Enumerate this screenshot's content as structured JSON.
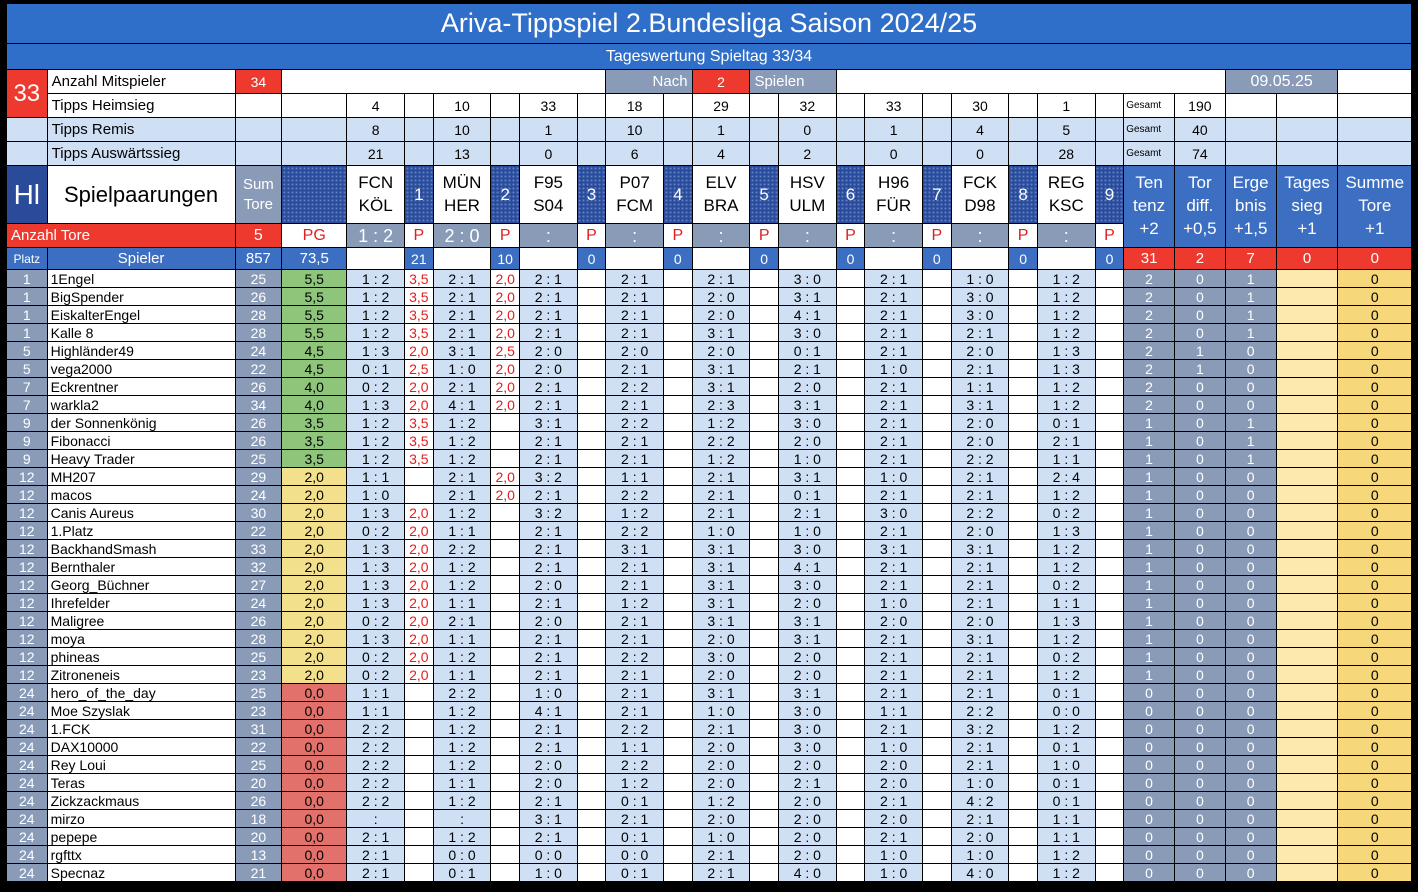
{
  "title": "Ariva-Tippspiel 2.Bundesliga Saison 2024/25",
  "subtitle": "Tageswertung Spieltag 33/34",
  "matchday": "33",
  "info": {
    "mitspieler_label": "Anzahl Mitspieler",
    "mitspieler_value": "34",
    "nach_label": "Nach",
    "nach_value": "2",
    "spielen_label": "Spielen",
    "date": "09.05.25",
    "heimsieg_label": "Tipps Heimsieg",
    "remis_label": "Tipps Remis",
    "auswaerts_label": "Tipps Auswärtssieg",
    "gesamt_label": "Gesamt",
    "gesamt_heim": "190",
    "gesamt_remis": "40",
    "gesamt_ausw": "74"
  },
  "tipps_heim": [
    "4",
    "10",
    "33",
    "18",
    "29",
    "32",
    "33",
    "30",
    "1"
  ],
  "tipps_remis": [
    "8",
    "10",
    "1",
    "10",
    "1",
    "0",
    "1",
    "4",
    "5"
  ],
  "tipps_ausw": [
    "21",
    "13",
    "0",
    "6",
    "4",
    "2",
    "0",
    "0",
    "28"
  ],
  "header": {
    "hl": "Hl",
    "spielpaarungen": "Spielpaarungen",
    "sum_tore": "Sum Tore",
    "anzahl_tore_label": "Anzahl Tore",
    "anzahl_tore_value": "5",
    "pg": "PG",
    "p": "P",
    "platz": "Platz",
    "spieler": "Spieler",
    "sum_total": "857",
    "pg_total": "73,5"
  },
  "matches": [
    {
      "home": "FCN",
      "away": "KÖL",
      "no": "1",
      "result": "1 : 2",
      "pts_total": "21"
    },
    {
      "home": "MÜN",
      "away": "HER",
      "no": "2",
      "result": "2 : 0",
      "pts_total": "10"
    },
    {
      "home": "F95",
      "away": "S04",
      "no": "3",
      "result": ":",
      "pts_total": "0"
    },
    {
      "home": "P07",
      "away": "FCM",
      "no": "4",
      "result": ":",
      "pts_total": "0"
    },
    {
      "home": "ELV",
      "away": "BRA",
      "no": "5",
      "result": ":",
      "pts_total": "0"
    },
    {
      "home": "HSV",
      "away": "ULM",
      "no": "6",
      "result": ":",
      "pts_total": "0"
    },
    {
      "home": "H96",
      "away": "FÜR",
      "no": "7",
      "result": ":",
      "pts_total": "0"
    },
    {
      "home": "FCK",
      "away": "D98",
      "no": "8",
      "result": ":",
      "pts_total": "0"
    },
    {
      "home": "REG",
      "away": "KSC",
      "no": "9",
      "result": ":",
      "pts_total": "0"
    }
  ],
  "bonus": [
    {
      "l1": "Ten",
      "l2": "tenz",
      "l3": "+2",
      "total": "31"
    },
    {
      "l1": "Tor",
      "l2": "diff.",
      "l3": "+0,5",
      "total": "2"
    },
    {
      "l1": "Erge",
      "l2": "bnis",
      "l3": "+1,5",
      "total": "7"
    },
    {
      "l1": "Tages",
      "l2": "sieg",
      "l3": "+1",
      "total": "0"
    },
    {
      "l1": "Summe",
      "l2": "Tore",
      "l3": "+1",
      "total": "0"
    }
  ],
  "colors": {
    "title_blue": "#2f6fc9",
    "header_red": "#ee3a2e",
    "gray_blue": "#8a9bb8",
    "tip_blue": "#cfe0f5"
  },
  "players": [
    {
      "place": "1",
      "name": "1Engel",
      "sum": "25",
      "pg": "5,5",
      "pgc": "green",
      "tips": [
        "1 : 2",
        "2 : 1",
        "2 : 1",
        "2 : 1",
        "2 : 1",
        "3 : 0",
        "2 : 1",
        "1 : 0",
        "1 : 2"
      ],
      "pts": [
        "3,5",
        "2,0"
      ],
      "b": [
        "2",
        "0",
        "1"
      ],
      "tag": "",
      "st": "0"
    },
    {
      "place": "1",
      "name": "BigSpender",
      "sum": "26",
      "pg": "5,5",
      "pgc": "green",
      "tips": [
        "1 : 2",
        "2 : 1",
        "2 : 1",
        "2 : 1",
        "2 : 0",
        "3 : 1",
        "2 : 1",
        "3 : 0",
        "1 : 2"
      ],
      "pts": [
        "3,5",
        "2,0"
      ],
      "b": [
        "2",
        "0",
        "1"
      ],
      "tag": "",
      "st": "0"
    },
    {
      "place": "1",
      "name": "EiskalterEngel",
      "sum": "28",
      "pg": "5,5",
      "pgc": "green",
      "tips": [
        "1 : 2",
        "2 : 1",
        "2 : 1",
        "2 : 1",
        "2 : 0",
        "4 : 1",
        "2 : 1",
        "3 : 0",
        "1 : 2"
      ],
      "pts": [
        "3,5",
        "2,0"
      ],
      "b": [
        "2",
        "0",
        "1"
      ],
      "tag": "",
      "st": "0"
    },
    {
      "place": "1",
      "name": "Kalle 8",
      "sum": "28",
      "pg": "5,5",
      "pgc": "green",
      "tips": [
        "1 : 2",
        "2 : 1",
        "2 : 1",
        "2 : 1",
        "3 : 1",
        "3 : 0",
        "2 : 1",
        "2 : 1",
        "1 : 2"
      ],
      "pts": [
        "3,5",
        "2,0"
      ],
      "b": [
        "2",
        "0",
        "1"
      ],
      "tag": "",
      "st": "0"
    },
    {
      "place": "5",
      "name": "Highländer49",
      "sum": "24",
      "pg": "4,5",
      "pgc": "green",
      "tips": [
        "1 : 3",
        "3 : 1",
        "2 : 0",
        "2 : 0",
        "2 : 0",
        "0 : 1",
        "2 : 1",
        "2 : 0",
        "1 : 3"
      ],
      "pts": [
        "2,0",
        "2,5"
      ],
      "b": [
        "2",
        "1",
        "0"
      ],
      "tag": "",
      "st": "0"
    },
    {
      "place": "5",
      "name": "vega2000",
      "sum": "22",
      "pg": "4,5",
      "pgc": "green",
      "tips": [
        "0 : 1",
        "1 : 0",
        "2 : 0",
        "2 : 1",
        "3 : 1",
        "2 : 1",
        "1 : 0",
        "2 : 1",
        "1 : 3"
      ],
      "pts": [
        "2,5",
        "2,0"
      ],
      "b": [
        "2",
        "1",
        "0"
      ],
      "tag": "",
      "st": "0"
    },
    {
      "place": "7",
      "name": "Eckrentner",
      "sum": "26",
      "pg": "4,0",
      "pgc": "green",
      "tips": [
        "0 : 2",
        "2 : 1",
        "2 : 1",
        "2 : 2",
        "3 : 1",
        "2 : 0",
        "2 : 1",
        "1 : 1",
        "1 : 2"
      ],
      "pts": [
        "2,0",
        "2,0"
      ],
      "b": [
        "2",
        "0",
        "0"
      ],
      "tag": "",
      "st": "0"
    },
    {
      "place": "7",
      "name": "warkla2",
      "sum": "34",
      "pg": "4,0",
      "pgc": "green",
      "tips": [
        "1 : 3",
        "4 : 1",
        "2 : 1",
        "2 : 1",
        "2 : 3",
        "3 : 1",
        "2 : 1",
        "3 : 1",
        "1 : 2"
      ],
      "pts": [
        "2,0",
        "2,0"
      ],
      "b": [
        "2",
        "0",
        "0"
      ],
      "tag": "",
      "st": "0"
    },
    {
      "place": "9",
      "name": "der Sonnenkönig",
      "sum": "26",
      "pg": "3,5",
      "pgc": "green",
      "tips": [
        "1 : 2",
        "1 : 2",
        "3 : 1",
        "2 : 2",
        "1 : 2",
        "3 : 0",
        "2 : 1",
        "2 : 0",
        "0 : 1"
      ],
      "pts": [
        "3,5",
        ""
      ],
      "b": [
        "1",
        "0",
        "1"
      ],
      "tag": "",
      "st": "0"
    },
    {
      "place": "9",
      "name": "Fibonacci",
      "sum": "26",
      "pg": "3,5",
      "pgc": "green",
      "tips": [
        "1 : 2",
        "1 : 2",
        "2 : 1",
        "2 : 1",
        "2 : 2",
        "2 : 0",
        "2 : 1",
        "2 : 0",
        "2 : 1"
      ],
      "pts": [
        "3,5",
        ""
      ],
      "b": [
        "1",
        "0",
        "1"
      ],
      "tag": "",
      "st": "0"
    },
    {
      "place": "9",
      "name": "Heavy Trader",
      "sum": "25",
      "pg": "3,5",
      "pgc": "green",
      "tips": [
        "1 : 2",
        "1 : 2",
        "2 : 1",
        "2 : 1",
        "1 : 2",
        "1 : 0",
        "2 : 1",
        "2 : 2",
        "1 : 1"
      ],
      "pts": [
        "3,5",
        ""
      ],
      "b": [
        "1",
        "0",
        "1"
      ],
      "tag": "",
      "st": "0"
    },
    {
      "place": "12",
      "name": "MH207",
      "sum": "29",
      "pg": "2,0",
      "pgc": "yellow",
      "tips": [
        "1 : 1",
        "2 : 1",
        "3 : 2",
        "1 : 1",
        "2 : 1",
        "3 : 1",
        "1 : 0",
        "2 : 1",
        "2 : 4"
      ],
      "pts": [
        "",
        "2,0"
      ],
      "b": [
        "1",
        "0",
        "0"
      ],
      "tag": "",
      "st": "0"
    },
    {
      "place": "12",
      "name": "macos",
      "sum": "24",
      "pg": "2,0",
      "pgc": "yellow",
      "tips": [
        "1 : 0",
        "2 : 1",
        "2 : 1",
        "2 : 2",
        "2 : 1",
        "0 : 1",
        "2 : 1",
        "2 : 1",
        "1 : 2"
      ],
      "pts": [
        "",
        "2,0"
      ],
      "b": [
        "1",
        "0",
        "0"
      ],
      "tag": "",
      "st": "0"
    },
    {
      "place": "12",
      "name": "Canis Aureus",
      "sum": "30",
      "pg": "2,0",
      "pgc": "yellow",
      "tips": [
        "1 : 3",
        "1 : 2",
        "3 : 2",
        "1 : 2",
        "2 : 1",
        "2 : 1",
        "3 : 0",
        "2 : 2",
        "0 : 2"
      ],
      "pts": [
        "2,0",
        ""
      ],
      "b": [
        "1",
        "0",
        "0"
      ],
      "tag": "",
      "st": "0"
    },
    {
      "place": "12",
      "name": "1.Platz",
      "sum": "22",
      "pg": "2,0",
      "pgc": "yellow",
      "tips": [
        "0 : 2",
        "1 : 1",
        "2 : 1",
        "2 : 2",
        "1 : 0",
        "1 : 0",
        "2 : 1",
        "2 : 0",
        "1 : 3"
      ],
      "pts": [
        "2,0",
        ""
      ],
      "b": [
        "1",
        "0",
        "0"
      ],
      "tag": "",
      "st": "0"
    },
    {
      "place": "12",
      "name": "BackhandSmash",
      "sum": "33",
      "pg": "2,0",
      "pgc": "yellow",
      "tips": [
        "1 : 3",
        "2 : 2",
        "2 : 1",
        "3 : 1",
        "3 : 1",
        "3 : 0",
        "3 : 1",
        "3 : 1",
        "1 : 2"
      ],
      "pts": [
        "2,0",
        ""
      ],
      "b": [
        "1",
        "0",
        "0"
      ],
      "tag": "",
      "st": "0"
    },
    {
      "place": "12",
      "name": "Bernthaler",
      "sum": "32",
      "pg": "2,0",
      "pgc": "yellow",
      "tips": [
        "1 : 3",
        "1 : 2",
        "2 : 1",
        "2 : 1",
        "3 : 1",
        "4 : 1",
        "2 : 1",
        "2 : 1",
        "1 : 2"
      ],
      "pts": [
        "2,0",
        ""
      ],
      "b": [
        "1",
        "0",
        "0"
      ],
      "tag": "",
      "st": "0"
    },
    {
      "place": "12",
      "name": "Georg_Büchner",
      "sum": "27",
      "pg": "2,0",
      "pgc": "yellow",
      "tips": [
        "1 : 3",
        "1 : 2",
        "2 : 0",
        "2 : 1",
        "3 : 1",
        "3 : 0",
        "2 : 1",
        "2 : 1",
        "0 : 2"
      ],
      "pts": [
        "2,0",
        ""
      ],
      "b": [
        "1",
        "0",
        "0"
      ],
      "tag": "",
      "st": "0"
    },
    {
      "place": "12",
      "name": "Ihrefelder",
      "sum": "24",
      "pg": "2,0",
      "pgc": "yellow",
      "tips": [
        "1 : 3",
        "1 : 1",
        "2 : 1",
        "1 : 2",
        "3 : 1",
        "2 : 0",
        "1 : 0",
        "2 : 1",
        "1 : 1"
      ],
      "pts": [
        "2,0",
        ""
      ],
      "b": [
        "1",
        "0",
        "0"
      ],
      "tag": "",
      "st": "0"
    },
    {
      "place": "12",
      "name": "Maligree",
      "sum": "26",
      "pg": "2,0",
      "pgc": "yellow",
      "tips": [
        "0 : 2",
        "2 : 1",
        "2 : 0",
        "2 : 1",
        "3 : 1",
        "3 : 1",
        "2 : 0",
        "2 : 0",
        "1 : 3"
      ],
      "pts": [
        "2,0",
        ""
      ],
      "b": [
        "1",
        "0",
        "0"
      ],
      "tag": "",
      "st": "0"
    },
    {
      "place": "12",
      "name": "moya",
      "sum": "28",
      "pg": "2,0",
      "pgc": "yellow",
      "tips": [
        "1 : 3",
        "1 : 1",
        "2 : 1",
        "2 : 1",
        "2 : 0",
        "3 : 1",
        "2 : 1",
        "3 : 1",
        "1 : 2"
      ],
      "pts": [
        "2,0",
        ""
      ],
      "b": [
        "1",
        "0",
        "0"
      ],
      "tag": "",
      "st": "0"
    },
    {
      "place": "12",
      "name": "phineas",
      "sum": "25",
      "pg": "2,0",
      "pgc": "yellow",
      "tips": [
        "0 : 2",
        "1 : 2",
        "2 : 1",
        "2 : 2",
        "3 : 0",
        "2 : 0",
        "2 : 1",
        "2 : 1",
        "0 : 2"
      ],
      "pts": [
        "2,0",
        ""
      ],
      "b": [
        "1",
        "0",
        "0"
      ],
      "tag": "",
      "st": "0"
    },
    {
      "place": "12",
      "name": "Zitroneneis",
      "sum": "23",
      "pg": "2,0",
      "pgc": "yellow",
      "tips": [
        "0 : 2",
        "1 : 1",
        "2 : 1",
        "2 : 1",
        "2 : 0",
        "2 : 0",
        "2 : 1",
        "2 : 1",
        "1 : 2"
      ],
      "pts": [
        "2,0",
        ""
      ],
      "b": [
        "1",
        "0",
        "0"
      ],
      "tag": "",
      "st": "0"
    },
    {
      "place": "24",
      "name": "hero_of_the_day",
      "sum": "25",
      "pg": "0,0",
      "pgc": "red",
      "tips": [
        "1 : 1",
        "2 : 2",
        "1 : 0",
        "2 : 1",
        "3 : 1",
        "3 : 1",
        "2 : 1",
        "2 : 1",
        "0 : 1"
      ],
      "pts": [
        "",
        ""
      ],
      "b": [
        "0",
        "0",
        "0"
      ],
      "tag": "",
      "st": "0"
    },
    {
      "place": "24",
      "name": "Moe Szyslak",
      "sum": "23",
      "pg": "0,0",
      "pgc": "red",
      "tips": [
        "1 : 1",
        "1 : 2",
        "4 : 1",
        "2 : 1",
        "1 : 0",
        "3 : 0",
        "1 : 1",
        "2 : 2",
        "0 : 0"
      ],
      "pts": [
        "",
        ""
      ],
      "b": [
        "0",
        "0",
        "0"
      ],
      "tag": "",
      "st": "0"
    },
    {
      "place": "24",
      "name": "1.FCK",
      "sum": "31",
      "pg": "0,0",
      "pgc": "red",
      "tips": [
        "2 : 2",
        "1 : 2",
        "2 : 1",
        "2 : 2",
        "2 : 1",
        "3 : 0",
        "2 : 1",
        "3 : 2",
        "1 : 2"
      ],
      "pts": [
        "",
        ""
      ],
      "b": [
        "0",
        "0",
        "0"
      ],
      "tag": "",
      "st": "0"
    },
    {
      "place": "24",
      "name": "DAX10000",
      "sum": "22",
      "pg": "0,0",
      "pgc": "red",
      "tips": [
        "2 : 2",
        "1 : 2",
        "2 : 1",
        "1 : 1",
        "2 : 0",
        "3 : 0",
        "1 : 0",
        "2 : 1",
        "0 : 1"
      ],
      "pts": [
        "",
        ""
      ],
      "b": [
        "0",
        "0",
        "0"
      ],
      "tag": "",
      "st": "0"
    },
    {
      "place": "24",
      "name": "Rey Loui",
      "sum": "25",
      "pg": "0,0",
      "pgc": "red",
      "tips": [
        "2 : 2",
        "1 : 2",
        "2 : 0",
        "2 : 2",
        "2 : 0",
        "2 : 0",
        "2 : 0",
        "2 : 1",
        "1 : 0"
      ],
      "pts": [
        "",
        ""
      ],
      "b": [
        "0",
        "0",
        "0"
      ],
      "tag": "",
      "st": "0"
    },
    {
      "place": "24",
      "name": "Teras",
      "sum": "20",
      "pg": "0,0",
      "pgc": "red",
      "tips": [
        "2 : 2",
        "1 : 1",
        "2 : 0",
        "1 : 2",
        "2 : 0",
        "2 : 1",
        "2 : 0",
        "1 : 0",
        "0 : 1"
      ],
      "pts": [
        "",
        ""
      ],
      "b": [
        "0",
        "0",
        "0"
      ],
      "tag": "",
      "st": "0"
    },
    {
      "place": "24",
      "name": "Zickzackmaus",
      "sum": "26",
      "pg": "0,0",
      "pgc": "red",
      "tips": [
        "2 : 2",
        "1 : 2",
        "2 : 1",
        "0 : 1",
        "1 : 2",
        "2 : 0",
        "2 : 1",
        "4 : 2",
        "0 : 1"
      ],
      "pts": [
        "",
        ""
      ],
      "b": [
        "0",
        "0",
        "0"
      ],
      "tag": "",
      "st": "0"
    },
    {
      "place": "24",
      "name": "mirzo",
      "sum": "18",
      "pg": "0,0",
      "pgc": "red",
      "tips": [
        ":",
        ":",
        "3 : 1",
        "2 : 1",
        "2 : 0",
        "2 : 0",
        "2 : 0",
        "2 : 1",
        "1 : 1"
      ],
      "pts": [
        "",
        ""
      ],
      "b": [
        "0",
        "0",
        "0"
      ],
      "tag": "",
      "st": "0"
    },
    {
      "place": "24",
      "name": "pepepe",
      "sum": "20",
      "pg": "0,0",
      "pgc": "red",
      "tips": [
        "2 : 1",
        "1 : 2",
        "2 : 1",
        "0 : 1",
        "1 : 0",
        "2 : 0",
        "2 : 1",
        "2 : 0",
        "1 : 1"
      ],
      "pts": [
        "",
        ""
      ],
      "b": [
        "0",
        "0",
        "0"
      ],
      "tag": "",
      "st": "0"
    },
    {
      "place": "24",
      "name": "rgfttx",
      "sum": "13",
      "pg": "0,0",
      "pgc": "red",
      "tips": [
        "2 : 1",
        "0 : 0",
        "0 : 0",
        "0 : 0",
        "2 : 1",
        "2 : 0",
        "1 : 0",
        "1 : 0",
        "1 : 2"
      ],
      "pts": [
        "",
        ""
      ],
      "b": [
        "0",
        "0",
        "0"
      ],
      "tag": "",
      "st": "0"
    },
    {
      "place": "24",
      "name": "Specnaz",
      "sum": "21",
      "pg": "0,0",
      "pgc": "red",
      "tips": [
        "2 : 1",
        "0 : 1",
        "1 : 0",
        "0 : 1",
        "2 : 1",
        "4 : 0",
        "1 : 0",
        "4 : 0",
        "1 : 2"
      ],
      "pts": [
        "",
        ""
      ],
      "b": [
        "0",
        "0",
        "0"
      ],
      "tag": "",
      "st": "0"
    }
  ]
}
